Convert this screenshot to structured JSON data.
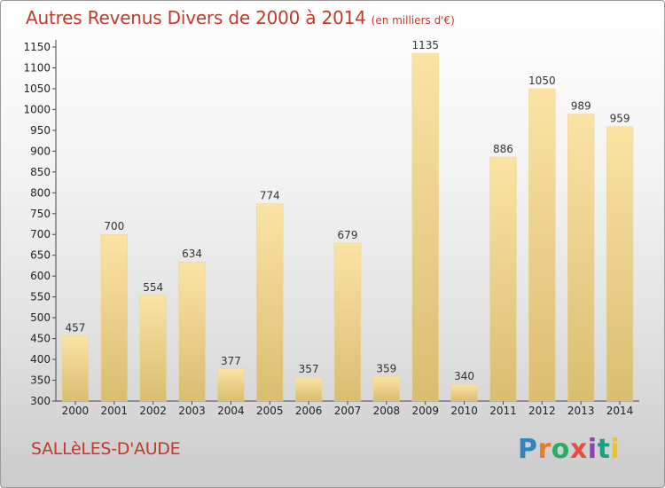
{
  "header": {
    "title": "Autres Revenus Divers de 2000 à 2014",
    "unit": "(en milliers d'€)"
  },
  "footer": {
    "place": "SALLèLES-D'AUDE",
    "logo_text": "Proxiti",
    "logo_colors": [
      "#2e86c1",
      "#e67e22",
      "#27ae60",
      "#e74c3c",
      "#8e44ad",
      "#16a085",
      "#f1c40f"
    ]
  },
  "chart_data": {
    "type": "bar",
    "title": "Autres Revenus Divers de 2000 à 2014",
    "subtitle": "(en milliers d'€)",
    "categories": [
      "2000",
      "2001",
      "2002",
      "2003",
      "2004",
      "2005",
      "2006",
      "2007",
      "2008",
      "2009",
      "2010",
      "2011",
      "2012",
      "2013",
      "2014"
    ],
    "values": [
      457,
      700,
      554,
      634,
      377,
      774,
      357,
      679,
      359,
      1135,
      340,
      886,
      1050,
      989,
      959
    ],
    "ylim": [
      300,
      1150
    ],
    "yticks": [
      300,
      350,
      400,
      450,
      500,
      550,
      600,
      650,
      700,
      750,
      800,
      850,
      900,
      950,
      1000,
      1050,
      1100,
      1150
    ],
    "grid": false,
    "bar_color_light": "#fbe3a4",
    "bar_color_dark": "#d9bd70"
  }
}
